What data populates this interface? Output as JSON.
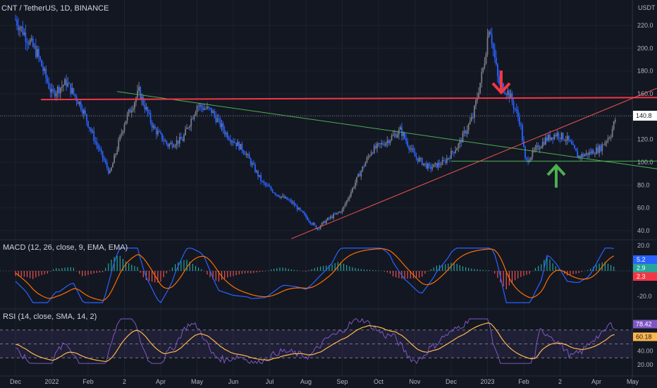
{
  "chart_data": [
    {
      "type": "candlestick",
      "title": "CNT / TetherUS, 1D, BINANCE",
      "currency": "USDT",
      "last_price": "140.8",
      "ylim": [
        30,
        235
      ],
      "y_ticks": [
        "220.0",
        "200.0",
        "180.0",
        "160.0",
        "140.0",
        "120.0",
        "100.0",
        "80.0",
        "60.0",
        "40.0"
      ],
      "x_ticks": [
        "Dec",
        "2022",
        "Feb",
        "2",
        "Apr",
        "May",
        "Jun",
        "Jul",
        "Aug",
        "Sep",
        "Oct",
        "Nov",
        "Dec",
        "2023",
        "Feb",
        "2",
        "Apr",
        "May"
      ],
      "colors": {
        "up": "#787b86",
        "down": "#2962ff",
        "resistance": "#f23645",
        "support": "#4caf50",
        "trend": "#ef5350"
      },
      "price_series": [
        {
          "m": 0,
          "v": 225
        },
        {
          "m": 0.6,
          "v": 195
        },
        {
          "m": 1.0,
          "v": 160
        },
        {
          "m": 1.4,
          "v": 170
        },
        {
          "m": 1.8,
          "v": 150
        },
        {
          "m": 2.2,
          "v": 118
        },
        {
          "m": 2.6,
          "v": 90
        },
        {
          "m": 3.0,
          "v": 135
        },
        {
          "m": 3.4,
          "v": 162
        },
        {
          "m": 3.8,
          "v": 130
        },
        {
          "m": 4.2,
          "v": 115
        },
        {
          "m": 4.6,
          "v": 120
        },
        {
          "m": 5.0,
          "v": 150
        },
        {
          "m": 5.4,
          "v": 145
        },
        {
          "m": 5.8,
          "v": 125
        },
        {
          "m": 6.3,
          "v": 110
        },
        {
          "m": 6.8,
          "v": 82
        },
        {
          "m": 7.2,
          "v": 72
        },
        {
          "m": 7.6,
          "v": 65
        },
        {
          "m": 8.0,
          "v": 52
        },
        {
          "m": 8.3,
          "v": 42
        },
        {
          "m": 8.6,
          "v": 50
        },
        {
          "m": 9.0,
          "v": 58
        },
        {
          "m": 9.4,
          "v": 85
        },
        {
          "m": 9.8,
          "v": 110
        },
        {
          "m": 10.2,
          "v": 118
        },
        {
          "m": 10.6,
          "v": 128
        },
        {
          "m": 11.0,
          "v": 105
        },
        {
          "m": 11.4,
          "v": 95
        },
        {
          "m": 11.8,
          "v": 100
        },
        {
          "m": 12.2,
          "v": 115
        },
        {
          "m": 12.6,
          "v": 140
        },
        {
          "m": 12.9,
          "v": 185
        },
        {
          "m": 13.05,
          "v": 222
        },
        {
          "m": 13.3,
          "v": 170
        },
        {
          "m": 13.6,
          "v": 160
        },
        {
          "m": 13.9,
          "v": 135
        },
        {
          "m": 14.05,
          "v": 100
        },
        {
          "m": 14.3,
          "v": 110
        },
        {
          "m": 14.6,
          "v": 120
        },
        {
          "m": 14.9,
          "v": 125
        },
        {
          "m": 15.2,
          "v": 120
        },
        {
          "m": 15.5,
          "v": 105
        },
        {
          "m": 15.8,
          "v": 108
        },
        {
          "m": 16.1,
          "v": 112
        },
        {
          "m": 16.4,
          "v": 125
        },
        {
          "m": 16.55,
          "v": 140.8
        }
      ],
      "trend_lines": [
        {
          "name": "resistance",
          "from": [
            2.8,
            162
          ],
          "to": [
            18.6,
            90
          ]
        },
        {
          "name": "horizontal-resistance",
          "from": [
            0.7,
            155
          ],
          "to": [
            20.2,
            157
          ]
        },
        {
          "name": "support",
          "from": [
            12.0,
            101
          ],
          "to": [
            18.6,
            101
          ]
        },
        {
          "name": "rising-trend",
          "from": [
            7.6,
            33
          ],
          "to": [
            19.2,
            185
          ]
        }
      ],
      "annotations": [
        "red-down-arrow",
        "green-up-arrow"
      ]
    },
    {
      "type": "line",
      "title": "MACD (12, 26, close, 9, EMA, EMA)",
      "y_ticks": [
        "20.0",
        "-20.0"
      ],
      "ylim": [
        -30,
        25
      ],
      "labels": [
        {
          "text": "5.2",
          "color": "#2962ff"
        },
        {
          "text": "2.9",
          "color": "#26a69a"
        },
        {
          "text": "2.3",
          "color": "#f23645"
        }
      ]
    },
    {
      "type": "line",
      "title": "RSI (14, close, SMA, 14, 2)",
      "y_ticks": [
        "60.00",
        "40.00",
        "20.00"
      ],
      "ylim": [
        15,
        90
      ],
      "band": [
        30,
        70
      ],
      "labels": [
        {
          "text": "78.42",
          "color": "#7e57c2"
        },
        {
          "text": "60.18",
          "color": "#ffb74d"
        }
      ]
    }
  ]
}
